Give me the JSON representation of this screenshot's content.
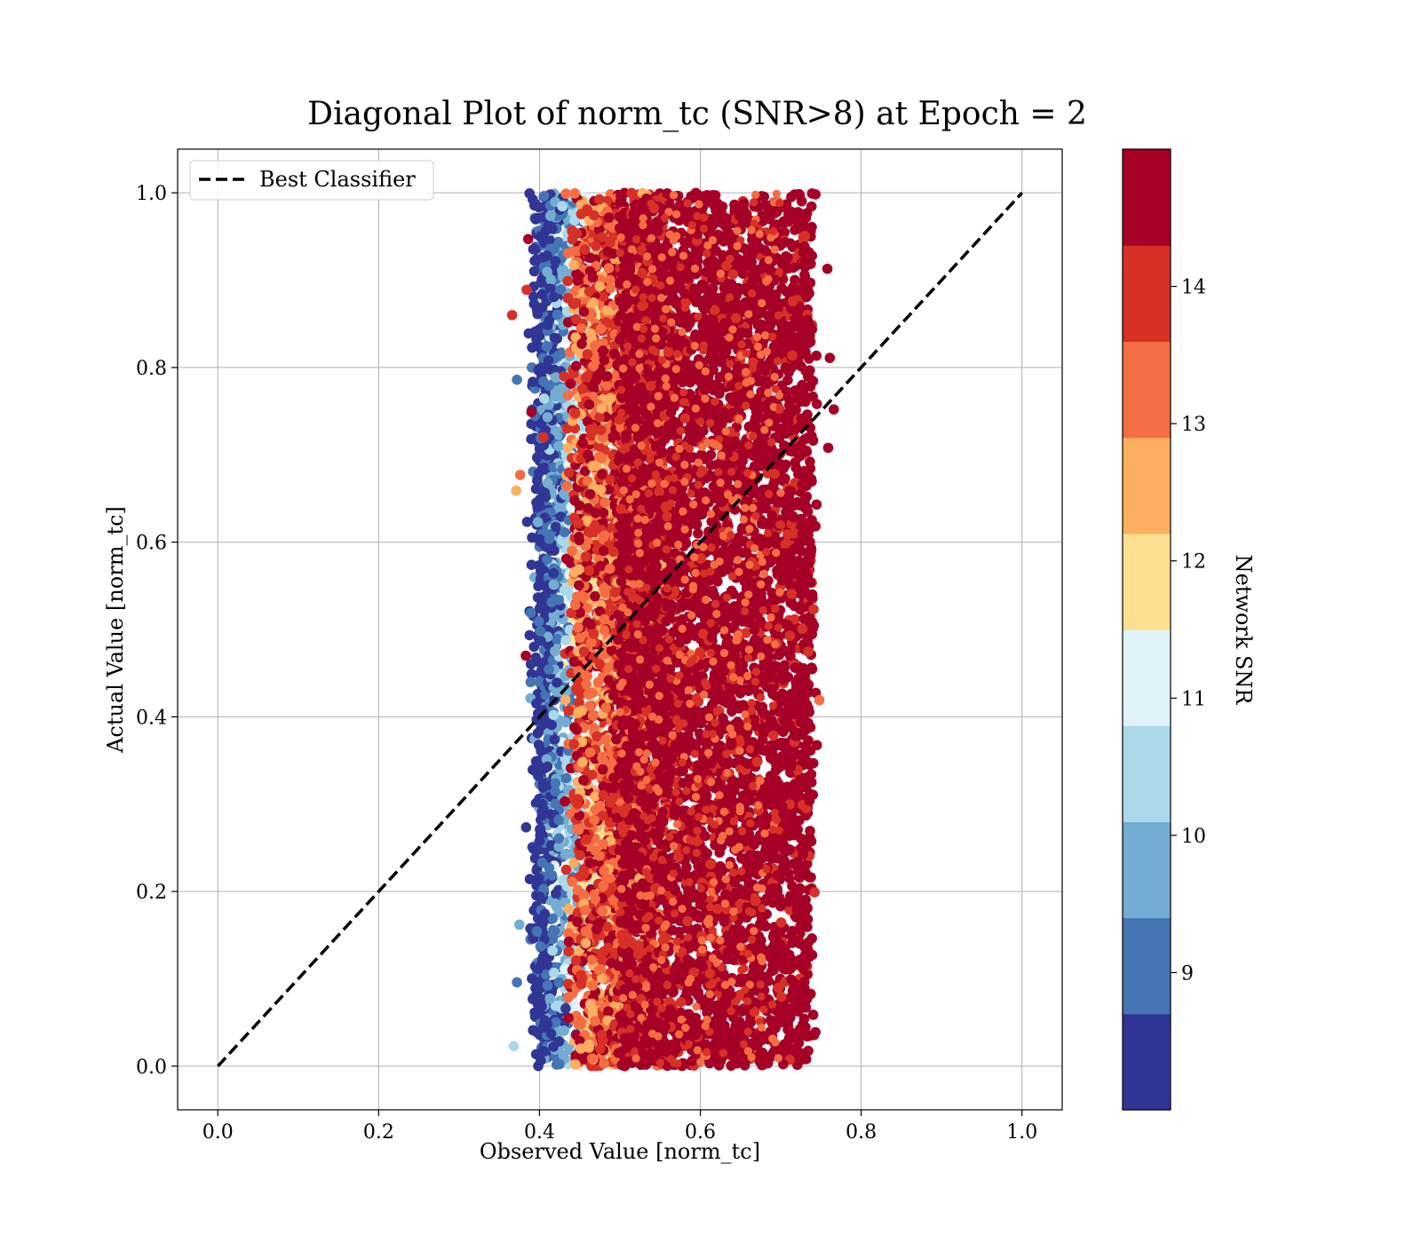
{
  "chart_data": {
    "type": "scatter",
    "title": "Diagonal Plot of norm_tc (SNR>8) at Epoch = 2",
    "xlabel": "Observed Value [norm_tc]",
    "ylabel": "Actual Value [norm_tc]",
    "xlim": [
      -0.05,
      1.05
    ],
    "ylim": [
      -0.05,
      1.05
    ],
    "xticks": [
      "0.0",
      "0.2",
      "0.4",
      "0.6",
      "0.8",
      "1.0"
    ],
    "yticks": [
      "0.0",
      "0.2",
      "0.4",
      "0.6",
      "0.8",
      "1.0"
    ],
    "grid": true,
    "legend": {
      "placement": "top-left",
      "entries": [
        {
          "label": "Best Classifier",
          "style": "dashed",
          "color": "#000000"
        }
      ]
    },
    "reference_line": {
      "name": "Best Classifier",
      "x": [
        0.0,
        1.0
      ],
      "y": [
        0.0,
        1.0
      ]
    },
    "scatter_summary": {
      "x_range": [
        0.37,
        0.77
      ],
      "y_range": [
        0.0,
        1.0
      ],
      "dense_core_x_range": [
        0.5,
        0.74
      ],
      "color_by": "Network SNR"
    },
    "scatter_points": [
      {
        "x": 0.386,
        "y": 0.947,
        "snr": 14.5
      },
      {
        "x": 0.384,
        "y": 0.889,
        "snr": 14.0
      },
      {
        "x": 0.366,
        "y": 0.86,
        "snr": 14.0
      },
      {
        "x": 0.372,
        "y": 0.786,
        "snr": 9.0
      },
      {
        "x": 0.39,
        "y": 0.749,
        "snr": 14.5
      },
      {
        "x": 0.376,
        "y": 0.677,
        "snr": 13.0
      },
      {
        "x": 0.371,
        "y": 0.659,
        "snr": 12.5
      },
      {
        "x": 0.389,
        "y": 0.519,
        "snr": 9.0
      },
      {
        "x": 0.383,
        "y": 0.47,
        "snr": 14.5
      },
      {
        "x": 0.368,
        "y": 0.023,
        "snr": 10.5
      },
      {
        "x": 0.375,
        "y": 0.162,
        "snr": 9.5
      },
      {
        "x": 0.372,
        "y": 0.096,
        "snr": 9.0
      },
      {
        "x": 0.766,
        "y": 0.752,
        "snr": 14.5
      },
      {
        "x": 0.761,
        "y": 0.811,
        "snr": 14.5
      },
      {
        "x": 0.758,
        "y": 0.913,
        "snr": 14.5
      },
      {
        "x": 0.759,
        "y": 0.708,
        "snr": 14.5
      },
      {
        "x": 0.748,
        "y": 0.419,
        "snr": 13.0
      },
      {
        "x": 0.742,
        "y": 0.199,
        "snr": 14.0
      },
      {
        "x": 0.405,
        "y": 0.72,
        "snr": 14.0
      },
      {
        "x": 0.398,
        "y": 0.623,
        "snr": 9.5
      },
      {
        "x": 0.403,
        "y": 0.3,
        "snr": 8.5
      }
    ],
    "colorbar": {
      "label": "Network SNR",
      "min": 8.0,
      "max": 15.0,
      "bin_edges": [
        8.0,
        8.7,
        9.4,
        10.1,
        10.8,
        11.5,
        12.2,
        12.9,
        13.6,
        14.3,
        15.0
      ],
      "colors": [
        "#313695",
        "#4575b4",
        "#74add1",
        "#abd9e9",
        "#e0f3f8",
        "#fee090",
        "#fdae61",
        "#f46d43",
        "#d73027",
        "#a50026"
      ],
      "ticks": [
        9,
        10,
        11,
        12,
        13,
        14
      ],
      "tick_labels": [
        "9",
        "10",
        "11",
        "12",
        "13",
        "14"
      ]
    }
  }
}
